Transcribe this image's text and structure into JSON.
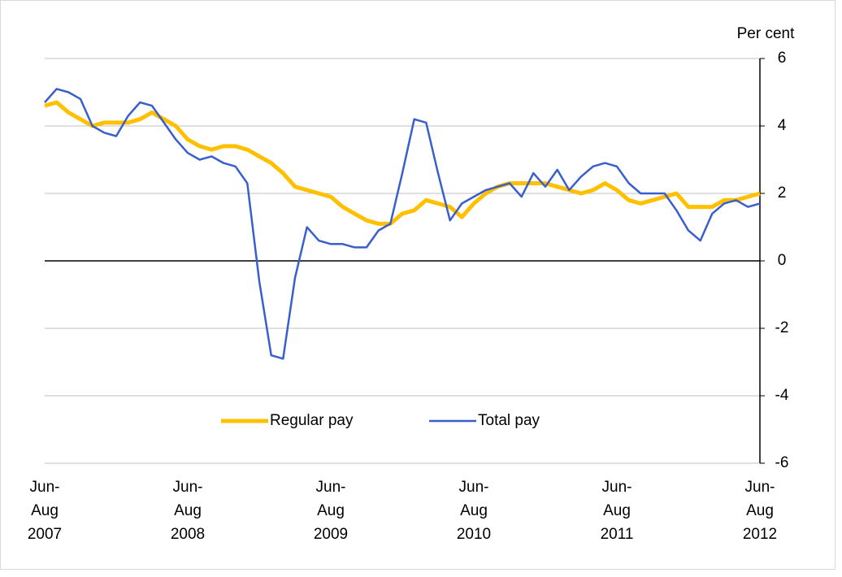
{
  "chart_data": {
    "type": "line",
    "y_label": "Per cent",
    "categories": [
      "Jun-Aug 2007",
      null,
      null,
      null,
      null,
      null,
      null,
      null,
      null,
      null,
      null,
      null,
      "Jun-Aug 2008",
      null,
      null,
      null,
      null,
      null,
      null,
      null,
      null,
      null,
      null,
      null,
      "Jun-Aug 2009",
      null,
      null,
      null,
      null,
      null,
      null,
      null,
      null,
      null,
      null,
      null,
      "Jun-Aug 2010",
      null,
      null,
      null,
      null,
      null,
      null,
      null,
      null,
      null,
      null,
      null,
      "Jun-Aug 2011",
      null,
      null,
      null,
      null,
      null,
      null,
      null,
      null,
      null,
      null,
      null,
      "Jun-Aug 2012"
    ],
    "series": [
      {
        "name": "Regular pay",
        "color": "#ffc000",
        "values": [
          4.6,
          4.7,
          4.4,
          4.2,
          4.0,
          4.1,
          4.1,
          4.1,
          4.2,
          4.4,
          4.2,
          4.0,
          3.6,
          3.4,
          3.3,
          3.4,
          3.4,
          3.3,
          3.1,
          2.9,
          2.6,
          2.2,
          2.1,
          2.0,
          1.9,
          1.6,
          1.4,
          1.2,
          1.1,
          1.1,
          1.4,
          1.5,
          1.8,
          1.7,
          1.6,
          1.3,
          1.7,
          2.0,
          2.2,
          2.3,
          2.3,
          2.3,
          2.3,
          2.2,
          2.1,
          2.0,
          2.1,
          2.3,
          2.1,
          1.8,
          1.7,
          1.8,
          1.9,
          2.0,
          1.6,
          1.6,
          1.6,
          1.8,
          1.8,
          1.9,
          2.0
        ]
      },
      {
        "name": "Total pay",
        "color": "#3a5fcd",
        "values": [
          4.7,
          5.1,
          5.0,
          4.8,
          4.0,
          3.8,
          3.7,
          4.3,
          4.7,
          4.6,
          4.1,
          3.6,
          3.2,
          3.0,
          3.1,
          2.9,
          2.8,
          2.3,
          -0.6,
          -2.8,
          -2.9,
          -0.5,
          1.0,
          0.6,
          0.5,
          0.5,
          0.4,
          0.4,
          0.9,
          1.1,
          2.6,
          4.2,
          4.1,
          2.6,
          1.2,
          1.7,
          1.9,
          2.1,
          2.2,
          2.3,
          1.9,
          2.6,
          2.2,
          2.7,
          2.1,
          2.5,
          2.8,
          2.9,
          2.8,
          2.3,
          2.0,
          2.0,
          2.0,
          1.5,
          0.9,
          0.6,
          1.4,
          1.7,
          1.8,
          1.6,
          1.7
        ]
      }
    ],
    "ylim": [
      -6,
      6
    ],
    "yticks": [
      -6,
      -4,
      -2,
      0,
      2,
      4,
      6
    ],
    "grid": true
  }
}
